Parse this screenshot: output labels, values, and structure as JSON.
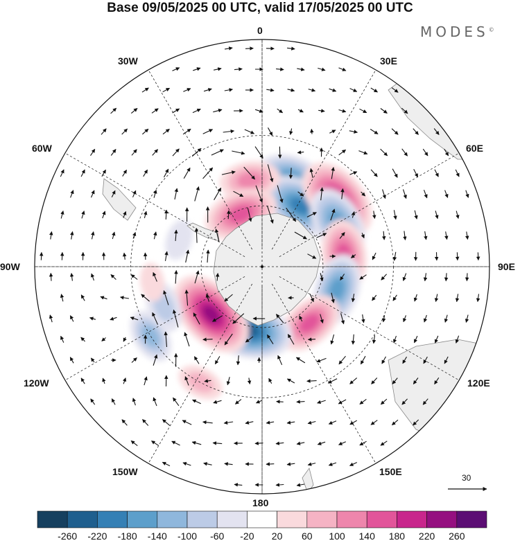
{
  "title": "Base 09/05/2025 00 UTC, valid 17/05/2025 00 UTC",
  "brand": "MODES",
  "brand_mark": "©",
  "longitude_labels": {
    "lon_0": "0",
    "lon_30e": "30E",
    "lon_60e": "60E",
    "lon_90e": "90E",
    "lon_120e": "120E",
    "lon_150e": "150E",
    "lon_180": "180",
    "lon_150w": "150W",
    "lon_120w": "120W",
    "lon_90w": "90W",
    "lon_60w": "60W",
    "lon_30w": "30W"
  },
  "vector_reference": "30",
  "colorbar": {
    "colors": [
      "#16405f",
      "#1f5f8e",
      "#3580b5",
      "#5d9fcb",
      "#8fb7dc",
      "#bccbe6",
      "#e3e3f0",
      "#ffffff",
      "#fadadd",
      "#f5b3c4",
      "#ee86ac",
      "#e2559a",
      "#c8268c",
      "#951080",
      "#5c0e74"
    ],
    "ticks": [
      "-260",
      "-220",
      "-180",
      "-140",
      "-100",
      "-60",
      "-20",
      "20",
      "60",
      "100",
      "140",
      "180",
      "220",
      "260"
    ]
  },
  "anomaly_cells": [
    {
      "lon": -18,
      "lat": -45,
      "value": -150
    },
    {
      "lon": -32,
      "lat": -55,
      "value": -190
    },
    {
      "lon": 8,
      "lat": -48,
      "value": 120
    },
    {
      "lon": 22,
      "lat": -62,
      "value": 170
    },
    {
      "lon": -48,
      "lat": -42,
      "value": 210
    },
    {
      "lon": -60,
      "lat": -48,
      "value": -170
    },
    {
      "lon": -82,
      "lat": -50,
      "value": 160
    },
    {
      "lon": -107,
      "lat": -52,
      "value": -160
    },
    {
      "lon": -140,
      "lat": -54,
      "value": 150
    },
    {
      "lon": 168,
      "lat": -58,
      "value": -220
    },
    {
      "lon": 133,
      "lat": -56,
      "value": 230
    },
    {
      "lon": 112,
      "lat": -40,
      "value": -90
    },
    {
      "lon": 122,
      "lat": -30,
      "value": -100
    },
    {
      "lon": 152,
      "lat": -30,
      "value": 70
    },
    {
      "lon": 72,
      "lat": -48,
      "value": -50
    },
    {
      "lon": 98,
      "lat": -38,
      "value": 40
    }
  ]
}
